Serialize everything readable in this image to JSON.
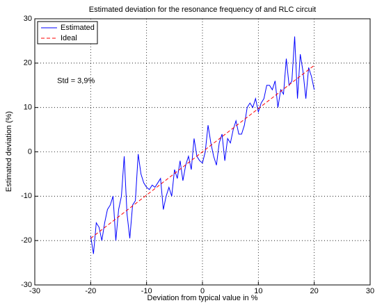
{
  "chart_data": {
    "type": "line",
    "title": "Estimated deviation for the resonance frequency of and RLC circuit",
    "x_label": "Deviation from typical value in %",
    "y_label": "Estimated deviation (%)",
    "annotation": "Std = 3,9%",
    "annotation_x": -26,
    "annotation_y": 16,
    "xlim": [
      -30,
      30
    ],
    "ylim": [
      -30,
      30
    ],
    "xticks": [
      -30,
      -20,
      -10,
      0,
      10,
      20,
      30
    ],
    "yticks": [
      -30,
      -20,
      -10,
      0,
      10,
      20,
      30
    ],
    "grid": true,
    "legend": "upper left",
    "series": [
      {
        "name": "Estimated",
        "color": "#0000ff",
        "dash": "solid",
        "x": [
          -20,
          -19.5,
          -19,
          -18.5,
          -18,
          -17.5,
          -17,
          -16.5,
          -16,
          -15.5,
          -15,
          -14.5,
          -14,
          -13.5,
          -13,
          -12.5,
          -12,
          -11.5,
          -11,
          -10.5,
          -10,
          -9.5,
          -9,
          -8.5,
          -8,
          -7.5,
          -7,
          -6.5,
          -6,
          -5.5,
          -5,
          -4.5,
          -4,
          -3.5,
          -3,
          -2.5,
          -2,
          -1.5,
          -1,
          -0.5,
          0,
          0.5,
          1,
          1.5,
          2,
          2.5,
          3,
          3.5,
          4,
          4.5,
          5,
          5.5,
          6,
          6.5,
          7,
          7.5,
          8,
          8.5,
          9,
          9.5,
          10,
          10.5,
          11,
          11.5,
          12,
          12.5,
          13,
          13.5,
          14,
          14.5,
          15,
          15.5,
          16,
          16.5,
          17,
          17.5,
          18,
          18.5,
          19,
          19.5,
          20
        ],
        "values": [
          -19,
          -23,
          -16,
          -17,
          -20,
          -16,
          -13,
          -12,
          -10,
          -20,
          -13,
          -10,
          -1,
          -14,
          -19.5,
          -12,
          -11,
          -0.5,
          -5,
          -7,
          -8,
          -8.5,
          -7.5,
          -8,
          -7,
          -6,
          -13,
          -10,
          -8,
          -10,
          -4,
          -6,
          -2,
          -6.5,
          -3,
          -1,
          -4,
          3,
          -1,
          -2,
          -2.5,
          0,
          6,
          2,
          -1,
          -3,
          2,
          4,
          -2,
          3,
          2,
          5,
          7,
          4,
          4,
          6,
          10,
          11,
          10,
          12,
          9,
          11,
          12,
          15,
          15,
          14,
          16,
          10,
          14,
          13,
          21,
          15,
          16,
          26,
          12,
          22,
          18,
          12,
          19,
          17,
          14
        ]
      },
      {
        "name": "Ideal",
        "color": "#ff0000",
        "dash": "dashed",
        "x": [
          -20,
          20
        ],
        "values": [
          -19.5,
          19.5
        ]
      }
    ]
  }
}
